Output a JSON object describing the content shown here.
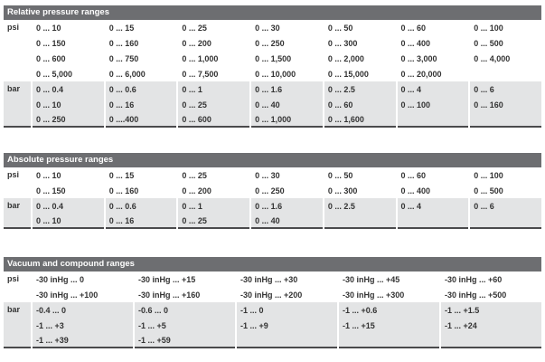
{
  "style": {
    "header_bg": "#6d6e71",
    "header_text": "#ffffff",
    "row_alt_bg": "#e3e4e5",
    "bottom_border": "#4a4a4c",
    "body_text": "#333333"
  },
  "tables": [
    {
      "title": "Relative pressure ranges",
      "columns": 7,
      "groups": [
        {
          "unit": "psi",
          "shaded": false,
          "rows": [
            [
              "0 ... 10",
              "0 ... 15",
              "0 ... 25",
              "0 ... 30",
              "0 ... 50",
              "0 ... 60",
              "0 ... 100"
            ],
            [
              "0 ... 150",
              "0 ... 160",
              "0 ... 200",
              "0 ... 250",
              "0 ... 300",
              "0 ... 400",
              "0 ... 500"
            ],
            [
              "0 ... 600",
              "0 ... 750",
              "0 ... 1,000",
              "0 ... 1,500",
              "0 ... 2,000",
              "0 ... 3,000",
              "0 ... 4,000"
            ],
            [
              "0 ... 5,000",
              "0 ... 6,000",
              "0 ... 7,500",
              "0 ... 10,000",
              "0 ... 15,000",
              "0 ... 20,000",
              ""
            ]
          ]
        },
        {
          "unit": "bar",
          "shaded": true,
          "rows": [
            [
              "0 ... 0.4",
              "0 ... 0.6",
              "0 ... 1",
              "0 ... 1.6",
              "0 ... 2.5",
              "0 ... 4",
              "0 ... 6"
            ],
            [
              "0 ... 10",
              "0 ... 16",
              "0 ... 25",
              "0 ... 40",
              "0 ... 60",
              "0 ... 100",
              "0 ... 160"
            ],
            [
              "0 ... 250",
              "0 ....400",
              "0 ... 600",
              "0 ... 1,000",
              "0 ... 1,600",
              "",
              ""
            ]
          ]
        }
      ]
    },
    {
      "title": "Absolute pressure ranges",
      "columns": 7,
      "groups": [
        {
          "unit": "psi",
          "shaded": false,
          "rows": [
            [
              "0 ... 10",
              "0 ... 15",
              "0 ... 25",
              "0 ... 30",
              "0 ... 50",
              "0 ... 60",
              "0 ... 100"
            ],
            [
              "0 ... 150",
              "0 ... 160",
              "0 ... 200",
              "0 ... 250",
              "0 ... 300",
              "0 ... 400",
              "0 ... 500"
            ]
          ]
        },
        {
          "unit": "bar",
          "shaded": true,
          "rows": [
            [
              "0 ... 0.4",
              "0 ... 0.6",
              "0 ... 1",
              "0 ... 1.6",
              "0 ... 2.5",
              "0 ... 4",
              "0 ... 6"
            ],
            [
              "0 ... 10",
              "0 ... 16",
              "0 ... 25",
              "0 ... 40",
              "",
              "",
              ""
            ]
          ]
        }
      ]
    },
    {
      "title": "Vacuum and compound ranges",
      "columns": 5,
      "groups": [
        {
          "unit": "psi",
          "shaded": false,
          "rows": [
            [
              "-30 inHg ... 0",
              "-30 inHg ... +15",
              "-30 inHg ... +30",
              "-30 inHg ... +45",
              "-30 inHg ... +60"
            ],
            [
              "-30 inHg ... +100",
              "-30 inHg ... +160",
              "-30 inHg ... +200",
              "-30 inHg ... +300",
              "-30 inHg ... +500"
            ]
          ]
        },
        {
          "unit": "bar",
          "shaded": true,
          "rows": [
            [
              "-0.4 ... 0",
              "-0.6 ... 0",
              "-1 ... 0",
              "-1 ... +0.6",
              "-1 ... +1.5"
            ],
            [
              "-1 ... +3",
              "-1 ... +5",
              "-1 ... +9",
              "-1 ... +15",
              "-1 ... +24"
            ],
            [
              "-1 ... +39",
              "-1 ... +59",
              "",
              "",
              ""
            ]
          ]
        }
      ]
    }
  ]
}
